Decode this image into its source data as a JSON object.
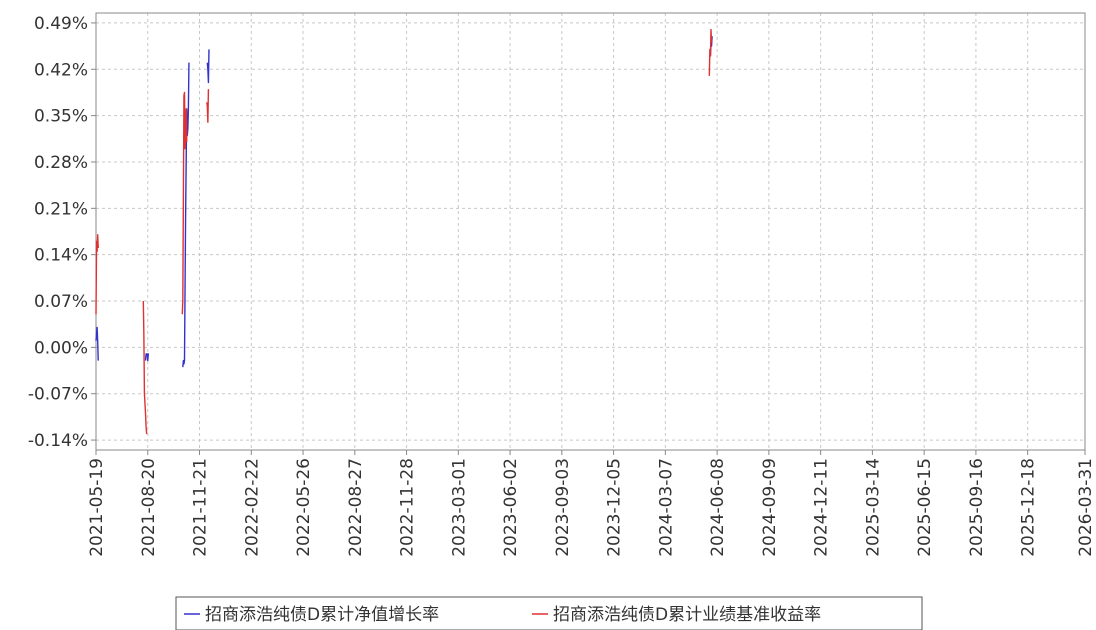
{
  "chart_data": {
    "type": "line",
    "title": "",
    "xlabel": "",
    "ylabel": "",
    "x_ticks": [
      "2021-05-19",
      "2021-08-20",
      "2021-11-21",
      "2022-02-22",
      "2022-05-26",
      "2022-08-27",
      "2022-11-28",
      "2023-03-01",
      "2023-06-02",
      "2023-09-03",
      "2023-12-05",
      "2024-03-07",
      "2024-06-08",
      "2024-09-09",
      "2024-12-11",
      "2025-03-14",
      "2025-06-15",
      "2025-09-16",
      "2025-12-18",
      "2026-03-31"
    ],
    "y_ticks": [
      "0.49%",
      "0.42%",
      "0.35%",
      "0.28%",
      "0.21%",
      "0.14%",
      "0.07%",
      "0.00%",
      "-0.07%",
      "-0.14%"
    ],
    "xlim": [
      "2021-05-19",
      "2026-03-31"
    ],
    "ylim": [
      -0.155,
      0.505
    ],
    "grid": true,
    "legend_position": "bottom",
    "series": [
      {
        "name": "招商添浩纯债D累计净值增长率",
        "color": "#3333cc",
        "segments": [
          [
            [
              "2021-05-19",
              0.01
            ],
            [
              "2021-05-20",
              0.02
            ],
            [
              "2021-05-21",
              0.03
            ],
            [
              "2021-05-22",
              0.01
            ],
            [
              "2021-05-23",
              -0.02
            ]
          ],
          [
            [
              "2021-08-16",
              -0.02
            ],
            [
              "2021-08-17",
              -0.01
            ],
            [
              "2021-08-19",
              -0.01
            ],
            [
              "2021-08-20",
              -0.02
            ],
            [
              "2021-08-21",
              -0.01
            ],
            [
              "2021-08-22",
              -0.01
            ]
          ],
          [
            [
              "2021-10-22",
              -0.03
            ],
            [
              "2021-10-23",
              -0.02
            ],
            [
              "2021-10-24",
              -0.025
            ],
            [
              "2021-10-25",
              -0.02
            ],
            [
              "2021-10-27",
              0.2
            ],
            [
              "2021-10-29",
              0.36
            ],
            [
              "2021-10-30",
              0.32
            ],
            [
              "2021-10-31",
              0.33
            ],
            [
              "2021-11-01",
              0.36
            ],
            [
              "2021-11-02",
              0.43
            ]
          ],
          [
            [
              "2021-12-05",
              0.43
            ],
            [
              "2021-12-06",
              0.42
            ],
            [
              "2021-12-07",
              0.4
            ],
            [
              "2021-12-08",
              0.45
            ]
          ],
          [
            [
              "2024-05-27",
              0.44
            ],
            [
              "2024-05-28",
              0.46
            ],
            [
              "2024-05-29",
              0.455
            ],
            [
              "2024-05-30",
              0.47
            ]
          ]
        ]
      },
      {
        "name": "招商添浩纯债D累计业绩基准收益率",
        "color": "#e03030",
        "segments": [
          [
            [
              "2021-05-19",
              0.05
            ],
            [
              "2021-05-20",
              0.16
            ],
            [
              "2021-05-21",
              0.145
            ],
            [
              "2021-05-22",
              0.17
            ],
            [
              "2021-05-23",
              0.15
            ]
          ],
          [
            [
              "2021-08-12",
              0.07
            ],
            [
              "2021-08-13",
              0.02
            ],
            [
              "2021-08-14",
              -0.07
            ],
            [
              "2021-08-16",
              -0.1
            ],
            [
              "2021-08-17",
              -0.12
            ],
            [
              "2021-08-18",
              -0.13
            ],
            [
              "2021-08-19",
              -0.13
            ]
          ],
          [
            [
              "2021-10-21",
              0.05
            ],
            [
              "2021-10-22",
              0.07
            ],
            [
              "2021-10-24",
              0.38
            ],
            [
              "2021-10-25",
              0.385
            ],
            [
              "2021-10-26",
              0.3
            ],
            [
              "2021-10-27",
              0.33
            ],
            [
              "2021-10-28",
              0.36
            ],
            [
              "2021-10-29",
              0.31
            ]
          ],
          [
            [
              "2021-12-04",
              0.37
            ],
            [
              "2021-12-05",
              0.365
            ],
            [
              "2021-12-06",
              0.34
            ],
            [
              "2021-12-07",
              0.39
            ]
          ],
          [
            [
              "2024-05-25",
              0.41
            ],
            [
              "2024-05-26",
              0.45
            ],
            [
              "2024-05-27",
              0.44
            ],
            [
              "2024-05-28",
              0.48
            ],
            [
              "2024-05-29",
              0.46
            ]
          ]
        ]
      }
    ]
  }
}
